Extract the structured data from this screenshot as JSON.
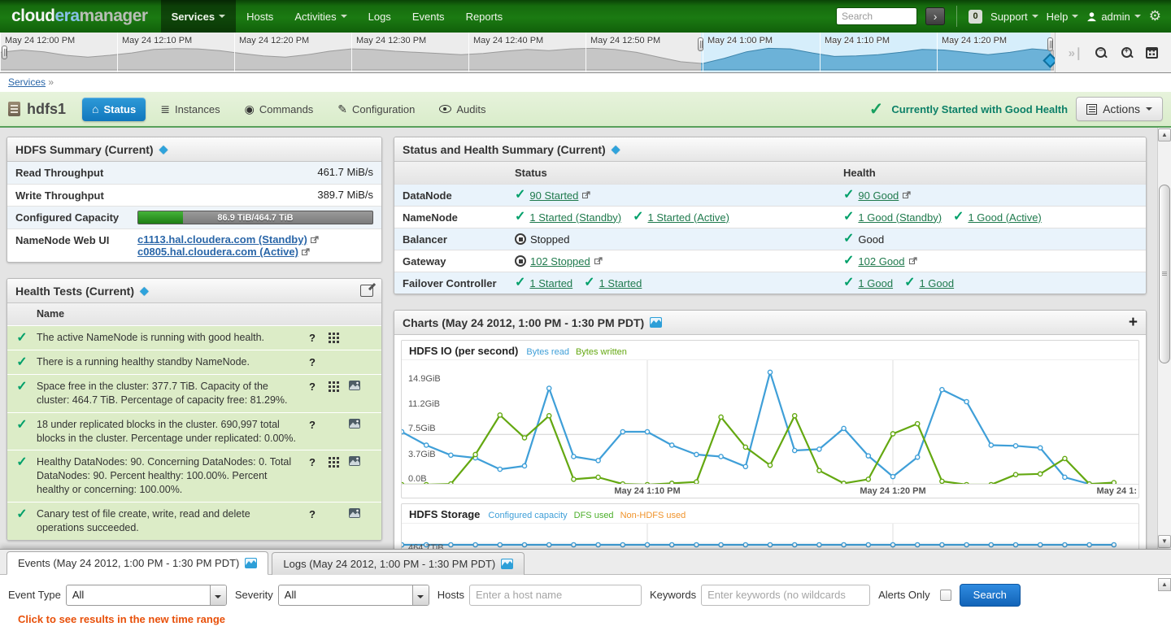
{
  "topnav": {
    "logo_cloud": "cloud",
    "logo_era": "era",
    "logo_manager": " manager",
    "items": [
      {
        "label": "Services",
        "caret": true,
        "active": true
      },
      {
        "label": "Hosts",
        "caret": false,
        "active": false
      },
      {
        "label": "Activities",
        "caret": true,
        "active": false
      },
      {
        "label": "Logs",
        "caret": false,
        "active": false
      },
      {
        "label": "Events",
        "caret": false,
        "active": false
      },
      {
        "label": "Reports",
        "caret": false,
        "active": false
      }
    ],
    "search_placeholder": "Search",
    "badge": "0",
    "support_label": "Support",
    "help_label": "Help",
    "user_label": "admin"
  },
  "timeline": {
    "labels": [
      "May 24 12:00 PM",
      "May 24 12:10 PM",
      "May 24 12:20 PM",
      "May 24 12:30 PM",
      "May 24 12:40 PM",
      "May 24 12:50 PM",
      "May 24 1:00 PM",
      "May 24 1:10 PM",
      "May 24 1:20 PM"
    ],
    "sparkline": [
      0.6,
      0.68,
      0.62,
      0.5,
      0.44,
      0.5,
      0.58,
      0.7,
      0.73,
      0.72,
      0.66,
      0.56,
      0.48,
      0.44,
      0.52,
      0.64,
      0.72,
      0.7,
      0.64,
      0.6,
      0.56,
      0.52,
      0.56,
      0.64,
      0.7,
      0.66,
      0.72,
      0.74,
      0.7,
      0.6,
      0.44,
      0.28,
      0.22,
      0.4,
      0.62,
      0.74,
      0.72,
      0.58,
      0.46,
      0.48,
      0.52,
      0.6,
      0.7,
      0.68,
      0.6,
      0.52,
      0.6,
      0.72,
      0.66
    ]
  },
  "breadcrumb": {
    "link": "Services",
    "separator": "»"
  },
  "service_header": {
    "name": "hdfs1",
    "tabs": [
      {
        "label": "Status",
        "icon": "home",
        "active": true
      },
      {
        "label": "Instances",
        "icon": "list",
        "active": false
      },
      {
        "label": "Commands",
        "icon": "target",
        "active": false
      },
      {
        "label": "Configuration",
        "icon": "edit",
        "active": false
      },
      {
        "label": "Audits",
        "icon": "eye",
        "active": false
      }
    ],
    "health_status": "Currently Started with Good Health",
    "actions_label": "Actions"
  },
  "hdfs_summary": {
    "title": "HDFS Summary (Current)",
    "read_label": "Read Throughput",
    "read_value": "461.7 MiB/s",
    "write_label": "Write Throughput",
    "write_value": "389.7 MiB/s",
    "capacity_label": "Configured Capacity",
    "capacity_text": "86.9 TiB/464.7 TiB",
    "capacity_percent": 19,
    "webui_label": "NameNode Web UI",
    "webui_links": [
      "c1113.hal.cloudera.com (Standby)",
      "c0805.hal.cloudera.com (Active)"
    ]
  },
  "status_health": {
    "title": "Status and Health Summary (Current)",
    "columns": [
      "",
      "Status",
      "Health"
    ],
    "rows": [
      {
        "label": "DataNode",
        "status": [
          {
            "icon": "check",
            "text": "90 Started",
            "link": true,
            "popout": true
          }
        ],
        "health": [
          {
            "icon": "check",
            "text": "90 Good",
            "link": true,
            "popout": true
          }
        ]
      },
      {
        "label": "NameNode",
        "status": [
          {
            "icon": "check",
            "text": "1 Started (Standby)",
            "link": true
          },
          {
            "icon": "check",
            "text": "1 Started (Active)",
            "link": true
          }
        ],
        "health": [
          {
            "icon": "check",
            "text": "1 Good (Standby)",
            "link": true
          },
          {
            "icon": "check",
            "text": "1 Good (Active)",
            "link": true
          }
        ]
      },
      {
        "label": "Balancer",
        "status": [
          {
            "icon": "stopped",
            "text": "Stopped",
            "link": false
          }
        ],
        "health": [
          {
            "icon": "check",
            "text": "Good",
            "link": false
          }
        ]
      },
      {
        "label": "Gateway",
        "status": [
          {
            "icon": "stopped",
            "text": "102 Stopped",
            "link": true,
            "popout": true
          }
        ],
        "health": [
          {
            "icon": "check",
            "text": "102 Good",
            "link": true,
            "popout": true
          }
        ]
      },
      {
        "label": "Failover Controller",
        "status": [
          {
            "icon": "check",
            "text": "1 Started",
            "link": true
          },
          {
            "icon": "check",
            "text": "1 Started",
            "link": true
          }
        ],
        "health": [
          {
            "icon": "check",
            "text": "1 Good",
            "link": true
          },
          {
            "icon": "check",
            "text": "1 Good",
            "link": true
          }
        ]
      }
    ]
  },
  "health_tests": {
    "title": "Health Tests (Current)",
    "name_column": "Name",
    "rows": [
      {
        "text": "The active NameNode is running with good health.",
        "help": true,
        "grid": true,
        "img": false
      },
      {
        "text": "There is a running healthy standby NameNode.",
        "help": true,
        "grid": false,
        "img": false
      },
      {
        "text": "Space free in the cluster: 377.7 TiB. Capacity of the cluster: 464.7 TiB. Percentage of capacity free: 81.29%.",
        "help": true,
        "grid": true,
        "img": true
      },
      {
        "text": "18 under replicated blocks in the cluster. 690,997 total blocks in the cluster. Percentage under replicated: 0.00%.",
        "help": true,
        "grid": false,
        "img": true
      },
      {
        "text": "Healthy DataNodes: 90. Concerning DataNodes: 0. Total DataNodes: 90. Percent healthy: 100.00%. Percent healthy or concerning: 100.00%.",
        "help": true,
        "grid": true,
        "img": true
      },
      {
        "text": "Canary test of file create, write, read and delete operations succeeded.",
        "help": true,
        "grid": false,
        "img": true
      }
    ]
  },
  "charts_panel": {
    "title": "Charts (May 24 2012, 1:00 PM - 1:30 PM PDT)",
    "add_label": "+"
  },
  "chart_data": [
    {
      "type": "line",
      "title": "HDFS IO (per second)",
      "time_range": "May 24 2012, 1:00 PM - 1:30 PM PDT",
      "x_unit": "minutes after 1:00 PM",
      "x": [
        0,
        1,
        2,
        3,
        4,
        5,
        6,
        7,
        8,
        9,
        10,
        11,
        12,
        13,
        14,
        15,
        16,
        17,
        18,
        19,
        20,
        21,
        22,
        23,
        24,
        25,
        26,
        27,
        28,
        29
      ],
      "x_axis_labels": [
        {
          "text": "May 24 1:10 PM",
          "minute": 10
        },
        {
          "text": "May 24 1:20 PM",
          "minute": 20
        },
        {
          "text": "May 24 1:",
          "minute": 30
        }
      ],
      "y_ticks": [
        {
          "label": "14.9GiB",
          "v": 14.9
        },
        {
          "label": "11.2GiB",
          "v": 11.2
        },
        {
          "label": "7.5GiB",
          "v": 7.5
        },
        {
          "label": "3.7GiB",
          "v": 3.7
        },
        {
          "label": "0.0B",
          "v": 0
        }
      ],
      "ylim": [
        0,
        18.6
      ],
      "grid_y": [
        7.5,
        0
      ],
      "series": [
        {
          "name": "Bytes read",
          "color": "#3f9fd8",
          "values": [
            7.9,
            5.9,
            4.4,
            4.0,
            2.3,
            2.8,
            14.4,
            4.2,
            3.6,
            7.9,
            7.9,
            5.9,
            4.5,
            4.2,
            2.7,
            16.8,
            5.1,
            5.3,
            8.4,
            4.3,
            1.2,
            4.1,
            14.2,
            12.4,
            5.9,
            5.8,
            5.5,
            1.1,
            0.1,
            0.2
          ]
        },
        {
          "name": "Bytes written",
          "color": "#64a811",
          "values": [
            0,
            0,
            0.1,
            4.5,
            10.4,
            7.0,
            10.3,
            0.8,
            1.1,
            0.1,
            0,
            0.2,
            0.4,
            10.1,
            5.6,
            2.9,
            10.3,
            2.1,
            0.2,
            0.8,
            7.6,
            9.1,
            0.5,
            0,
            0,
            1.5,
            1.6,
            3.9,
            0.1,
            0.3
          ]
        }
      ]
    },
    {
      "type": "line",
      "title": "HDFS Storage",
      "legend": [
        {
          "name": "Configured capacity",
          "color": "#3f9fd8"
        },
        {
          "name": "DFS used",
          "color": "#4caf2a"
        },
        {
          "name": "Non-HDFS used",
          "color": "#f0932b"
        }
      ],
      "visible_y_label": "464.7TiB",
      "series": [
        {
          "name": "Configured capacity",
          "color": "#3f9fd8",
          "values": [
            464.7,
            464.7,
            464.7,
            464.7,
            464.7,
            464.7,
            464.7,
            464.7,
            464.7,
            464.7,
            464.7,
            464.7,
            464.7,
            464.7,
            464.7,
            464.7,
            464.7,
            464.7,
            464.7,
            464.7,
            464.7,
            464.7,
            464.7,
            464.7,
            464.7,
            464.7,
            464.7,
            464.7,
            464.7,
            464.7
          ]
        }
      ],
      "note": "chart partially cut off by events panel; only flat configured-capacity line visible"
    }
  ],
  "events_panel": {
    "tabs": [
      {
        "label": "Events (May 24 2012, 1:00 PM - 1:30 PM PDT)",
        "active": true
      },
      {
        "label": "Logs (May 24 2012, 1:00 PM - 1:30 PM PDT)",
        "active": false
      }
    ],
    "form": {
      "event_type_label": "Event Type",
      "event_type_value": "All",
      "severity_label": "Severity",
      "severity_value": "All",
      "hosts_label": "Hosts",
      "hosts_placeholder": "Enter a host name",
      "keywords_label": "Keywords",
      "keywords_placeholder": "Enter keywords (no wildcards",
      "alerts_only_label": "Alerts Only",
      "search_label": "Search",
      "notice": "Click to see results in the new time range"
    }
  },
  "colors": {
    "topnav_green": "#1b7a12",
    "active_tab_blue": "#1688c9",
    "check_green": "#00a06a",
    "health_link_green": "#1f7a4d",
    "good_health_teal": "#0d8068",
    "notice_orange": "#e8500a",
    "selection_blue": "#6cb2d8"
  }
}
